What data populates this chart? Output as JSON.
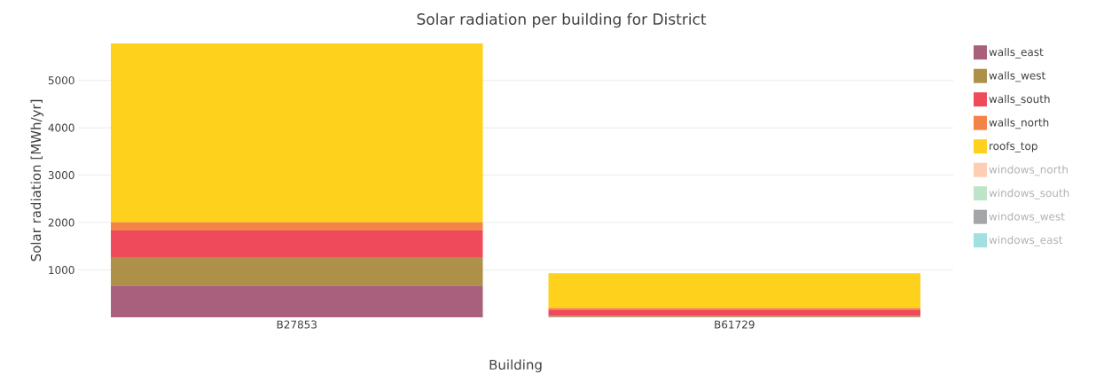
{
  "chart_data": {
    "type": "bar",
    "stacked": true,
    "title": "Solar radiation per building for District",
    "xlabel": "Building",
    "ylabel": "Solar radiation [MWh/yr]",
    "categories": [
      "B27853",
      "B61729"
    ],
    "series": [
      {
        "name": "walls_east",
        "color": "#a8607c",
        "values": [
          670,
          10
        ]
      },
      {
        "name": "walls_west",
        "color": "#ad9149",
        "values": [
          600,
          25
        ]
      },
      {
        "name": "walls_south",
        "color": "#ef4a5b",
        "values": [
          565,
          115
        ]
      },
      {
        "name": "walls_north",
        "color": "#f48347",
        "values": [
          170,
          45
        ]
      },
      {
        "name": "roofs_top",
        "color": "#fed11c",
        "values": [
          3775,
          735
        ]
      },
      {
        "name": "windows_north",
        "color": "#fdcdb4",
        "values": [
          null,
          null
        ]
      },
      {
        "name": "windows_south",
        "color": "#bfe3c6",
        "values": [
          null,
          null
        ]
      },
      {
        "name": "windows_west",
        "color": "#a4a6a9",
        "values": [
          null,
          null
        ]
      },
      {
        "name": "windows_east",
        "color": "#a1dfe1",
        "values": [
          null,
          null
        ]
      }
    ],
    "ylim": [
      0,
      5780
    ],
    "yticks": [
      1000,
      2000,
      3000,
      4000,
      5000
    ],
    "grid": "y",
    "legend": "top right"
  }
}
